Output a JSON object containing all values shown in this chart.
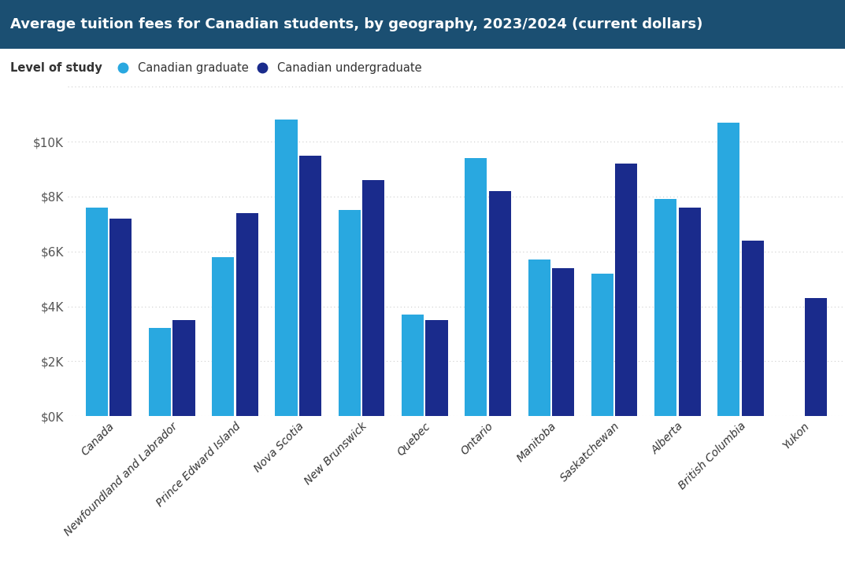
{
  "title": "Average tuition fees for Canadian students, by geography, 2023/2024 (current dollars)",
  "title_bg_color": "#1b4f72",
  "title_text_color": "#ffffff",
  "legend_label_prefix": "Level of study",
  "legend_graduate": "Canadian graduate",
  "legend_undergraduate": "Canadian undergraduate",
  "color_graduate": "#29a8e0",
  "color_undergraduate": "#1a2b8c",
  "categories": [
    "Canada",
    "Newfoundland and Labrador",
    "Prince Edward Island",
    "Nova Scotia",
    "New Brunswick",
    "Quebec",
    "Ontario",
    "Manitoba",
    "Saskatchewan",
    "Alberta",
    "British Columbia",
    "Yukon"
  ],
  "graduate_values": [
    7600,
    3200,
    5800,
    10800,
    7500,
    3700,
    9400,
    5700,
    5200,
    7900,
    10700,
    null
  ],
  "undergraduate_values": [
    7200,
    3500,
    7400,
    9500,
    8600,
    3500,
    8200,
    5400,
    9200,
    7600,
    6400,
    4300
  ],
  "ylim": [
    0,
    12000
  ],
  "yticks": [
    0,
    2000,
    4000,
    6000,
    8000,
    10000,
    12000
  ],
  "ytick_labels": [
    "$0K",
    "$2K",
    "$4K",
    "$6K",
    "$8K",
    "$10K",
    ""
  ],
  "background_color": "#ffffff",
  "plot_bg_color": "#ffffff",
  "grid_color": "#cccccc",
  "bar_width": 0.35,
  "bar_gap": 0.03
}
